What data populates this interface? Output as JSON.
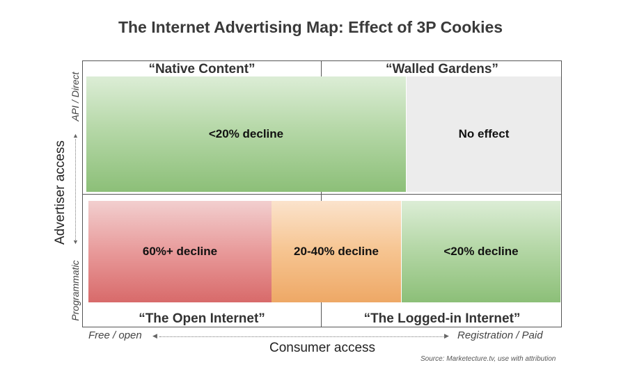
{
  "title": "The Internet Advertising Map: Effect of 3P Cookies",
  "quadrants": {
    "top_left": "“Native Content”",
    "top_right": "“Walled Gardens”",
    "bottom_left": "“The Open Internet”",
    "bottom_right": "“The Logged-in Internet”"
  },
  "boxes": {
    "native": {
      "label": "<20% decline",
      "color": "#a8d196"
    },
    "walled": {
      "label": "No effect",
      "color": "#ececec"
    },
    "open": {
      "label": "60%+ decline",
      "color": "#e07b7b"
    },
    "mid": {
      "label": "20-40% decline",
      "color": "#f3b87a"
    },
    "logged": {
      "label": "<20% decline",
      "color": "#a8d196"
    }
  },
  "y_axis": {
    "title": "Advertiser access",
    "top_tick": "API / Direct",
    "bottom_tick": "Programmatic"
  },
  "x_axis": {
    "title": "Consumer access",
    "left_tick": "Free / open",
    "right_tick": "Registration / Paid"
  },
  "source": "Source: Marketecture.tv, use with attribution"
}
